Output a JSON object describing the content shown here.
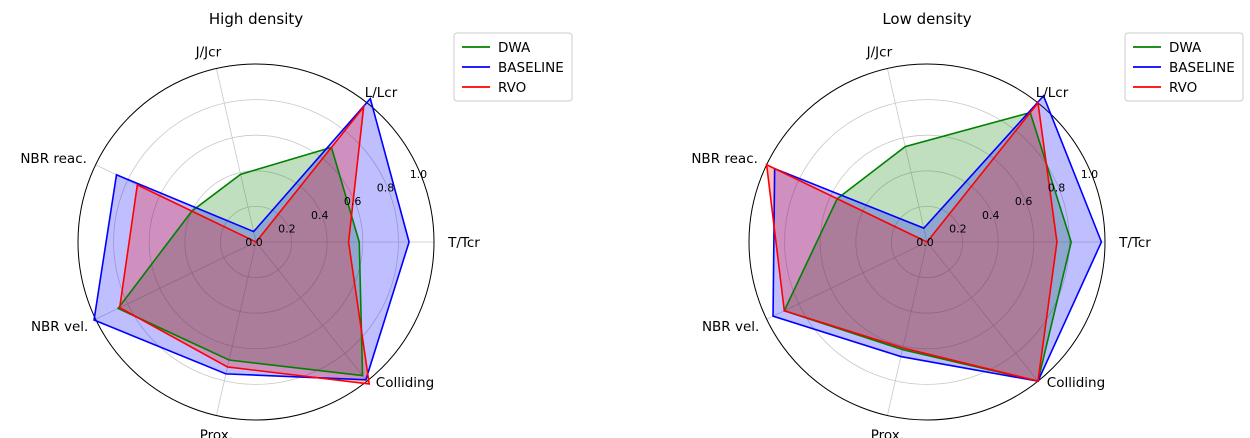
{
  "chart_data": [
    {
      "type": "radar",
      "title": "High density",
      "axes": [
        "T/Tcr",
        "L/Lcr",
        "J/Jcr",
        "NBR reac.",
        "NBR vel.",
        "Prox.",
        "Colliding"
      ],
      "radial_ticks": [
        "0.0",
        "0.2",
        "0.4",
        "0.6",
        "0.8",
        "1.0"
      ],
      "rlim": [
        0,
        1.0
      ],
      "grid": true,
      "legend_position": "top-right",
      "series": [
        {
          "name": "DWA",
          "color": "#008000",
          "fill": "rgba(0,128,0,0.25)",
          "values": [
            0.58,
            0.68,
            0.39,
            0.4,
            0.86,
            0.68,
            0.96
          ]
        },
        {
          "name": "BASELINE",
          "color": "#0000ff",
          "fill": "rgba(0,0,255,0.25)",
          "values": [
            0.86,
            1.03,
            0.06,
            0.87,
            1.01,
            0.76,
            0.99
          ]
        },
        {
          "name": "RVO",
          "color": "#ff0000",
          "fill": "rgba(255,0,0,0.25)",
          "values": [
            0.52,
            0.97,
            0.0,
            0.74,
            0.85,
            0.72,
            1.02
          ]
        }
      ]
    },
    {
      "type": "radar",
      "title": "Low density",
      "axes": [
        "T/Tcr",
        "L/Lcr",
        "J/Jcr",
        "NBR reac.",
        "NBR vel.",
        "Prox.",
        "Colliding"
      ],
      "radial_ticks": [
        "0.0",
        "0.2",
        "0.4",
        "0.6",
        "0.8",
        "1.0"
      ],
      "rlim": [
        0,
        1.0
      ],
      "grid": true,
      "legend_position": "top-right",
      "series": [
        {
          "name": "DWA",
          "color": "#008000",
          "fill": "rgba(0,128,0,0.25)",
          "values": [
            0.81,
            0.93,
            0.55,
            0.56,
            0.89,
            0.62,
            1.0
          ]
        },
        {
          "name": "BASELINE",
          "color": "#0000ff",
          "fill": "rgba(0,0,255,0.25)",
          "values": [
            0.98,
            1.05,
            0.08,
            0.95,
            0.96,
            0.66,
            1.0
          ]
        },
        {
          "name": "RVO",
          "color": "#ff0000",
          "fill": "rgba(255,0,0,0.25)",
          "values": [
            0.73,
            1.0,
            0.0,
            1.0,
            0.89,
            0.61,
            1.0
          ]
        }
      ]
    }
  ]
}
